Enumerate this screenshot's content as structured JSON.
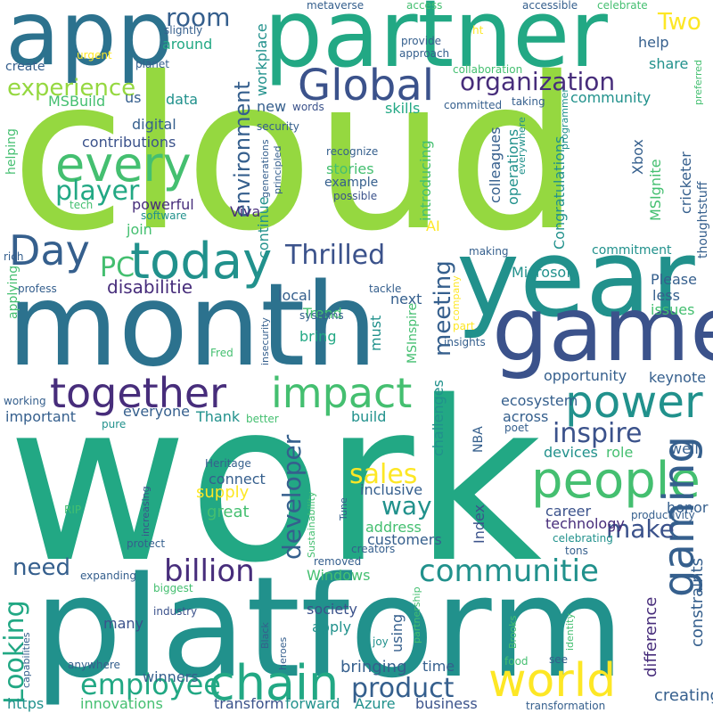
{
  "palette": {
    "green": "#95d840",
    "lime": "#b5de2b",
    "yellow": "#fde725",
    "teal": "#21918c",
    "emerald": "#22a884",
    "mint": "#44bf70",
    "blue": "#2c728e",
    "slate": "#355f8d",
    "indigo": "#3b528b",
    "violet": "#472d7b",
    "purple": "#440154"
  },
  "words": [
    {
      "text": "cloud",
      "color": "green"
    },
    {
      "text": "work",
      "color": "emerald"
    },
    {
      "text": "platform",
      "color": "teal"
    },
    {
      "text": "month",
      "color": "blue"
    },
    {
      "text": "partner",
      "color": "emerald"
    },
    {
      "text": "app",
      "color": "blue"
    },
    {
      "text": "year",
      "color": "teal"
    },
    {
      "text": "game",
      "color": "indigo"
    },
    {
      "text": "today",
      "color": "teal"
    },
    {
      "text": "world",
      "color": "yellow"
    },
    {
      "text": "people",
      "color": "mint"
    },
    {
      "text": "power",
      "color": "teal"
    },
    {
      "text": "impact",
      "color": "mint"
    },
    {
      "text": "together",
      "color": "violet"
    },
    {
      "text": "chain",
      "color": "emerald"
    },
    {
      "text": "every",
      "color": "mint"
    },
    {
      "text": "Global",
      "color": "indigo"
    },
    {
      "text": "Day",
      "color": "slate"
    },
    {
      "text": "gaming",
      "color": "slate"
    },
    {
      "text": "communitie",
      "color": "teal"
    },
    {
      "text": "billion",
      "color": "violet"
    },
    {
      "text": "product",
      "color": "slate"
    },
    {
      "text": "employee",
      "color": "emerald"
    },
    {
      "text": "organization",
      "color": "violet"
    },
    {
      "text": "experience",
      "color": "green"
    },
    {
      "text": "player",
      "color": "emerald"
    },
    {
      "text": "Thrilled",
      "color": "indigo"
    },
    {
      "text": "inspire",
      "color": "indigo"
    },
    {
      "text": "sales",
      "color": "yellow"
    },
    {
      "text": "way",
      "color": "teal"
    },
    {
      "text": "need",
      "color": "slate"
    },
    {
      "text": "developer",
      "color": "slate"
    },
    {
      "text": "environment",
      "color": "slate"
    },
    {
      "text": "meeting",
      "color": "slate"
    },
    {
      "text": "Looking",
      "color": "emerald"
    },
    {
      "text": "make",
      "color": "indigo"
    },
    {
      "text": "room",
      "color": "slate"
    },
    {
      "text": "Two",
      "color": "yellow"
    },
    {
      "text": "PC",
      "color": "mint"
    },
    {
      "text": "disabilitie",
      "color": "violet"
    },
    {
      "text": "bringing",
      "color": "slate"
    },
    {
      "text": "difference",
      "color": "violet"
    },
    {
      "text": "constraints",
      "color": "slate"
    },
    {
      "text": "creating",
      "color": "slate"
    },
    {
      "text": "ecosystem",
      "color": "slate"
    },
    {
      "text": "opportunity",
      "color": "slate"
    },
    {
      "text": "keynote",
      "color": "slate"
    },
    {
      "text": "inclusive",
      "color": "slate"
    },
    {
      "text": "career",
      "color": "indigo"
    },
    {
      "text": "technology",
      "color": "violet"
    },
    {
      "text": "great",
      "color": "mint"
    },
    {
      "text": "supply",
      "color": "yellow"
    },
    {
      "text": "connect",
      "color": "slate"
    },
    {
      "text": "address",
      "color": "mint"
    },
    {
      "text": "customers",
      "color": "slate"
    },
    {
      "text": "society",
      "color": "indigo"
    },
    {
      "text": "apply",
      "color": "teal"
    },
    {
      "text": "Windows",
      "color": "mint"
    },
    {
      "text": "many",
      "color": "indigo"
    },
    {
      "text": "winners",
      "color": "slate"
    },
    {
      "text": "innovations",
      "color": "mint"
    },
    {
      "text": "transform",
      "color": "indigo"
    },
    {
      "text": "forward",
      "color": "teal"
    },
    {
      "text": "Azure",
      "color": "teal"
    },
    {
      "text": "business",
      "color": "indigo"
    },
    {
      "text": "time",
      "color": "slate"
    },
    {
      "text": "using",
      "color": "slate"
    },
    {
      "text": "https",
      "color": "teal"
    },
    {
      "text": "build",
      "color": "teal"
    },
    {
      "text": "across",
      "color": "slate"
    },
    {
      "text": "role",
      "color": "mint"
    },
    {
      "text": "devices",
      "color": "teal"
    },
    {
      "text": "well",
      "color": "slate"
    },
    {
      "text": "honor",
      "color": "slate"
    },
    {
      "text": "Index",
      "color": "indigo"
    },
    {
      "text": "NBA",
      "color": "slate"
    },
    {
      "text": "challenges",
      "color": "teal"
    },
    {
      "text": "must",
      "color": "teal"
    },
    {
      "text": "bring",
      "color": "emerald"
    },
    {
      "text": "Trend",
      "color": "mint"
    },
    {
      "text": "local",
      "color": "slate"
    },
    {
      "text": "next",
      "color": "slate"
    },
    {
      "text": "AI",
      "color": "yellow"
    },
    {
      "text": "join",
      "color": "mint"
    },
    {
      "text": "powerful",
      "color": "violet"
    },
    {
      "text": "Viva",
      "color": "violet"
    },
    {
      "text": "continue",
      "color": "teal"
    },
    {
      "text": "digital",
      "color": "slate"
    },
    {
      "text": "contributions",
      "color": "indigo"
    },
    {
      "text": "data",
      "color": "teal"
    },
    {
      "text": "around",
      "color": "emerald"
    },
    {
      "text": "create",
      "color": "slate"
    },
    {
      "text": "us",
      "color": "slate"
    },
    {
      "text": "new",
      "color": "slate"
    },
    {
      "text": "skills",
      "color": "emerald"
    },
    {
      "text": "workplace",
      "color": "teal"
    },
    {
      "text": "help",
      "color": "slate"
    },
    {
      "text": "share",
      "color": "teal"
    },
    {
      "text": "community",
      "color": "teal"
    },
    {
      "text": "MSBuild",
      "color": "mint"
    },
    {
      "text": "stories",
      "color": "mint"
    },
    {
      "text": "example",
      "color": "slate"
    },
    {
      "text": "introducing",
      "color": "mint"
    },
    {
      "text": "colleagues",
      "color": "slate"
    },
    {
      "text": "operations",
      "color": "teal"
    },
    {
      "text": "Congratulations",
      "color": "teal"
    },
    {
      "text": "Microsoft",
      "color": "teal"
    },
    {
      "text": "commitment",
      "color": "teal"
    },
    {
      "text": "Xbox",
      "color": "slate"
    },
    {
      "text": "MSIgnite",
      "color": "mint"
    },
    {
      "text": "cricketer",
      "color": "slate"
    },
    {
      "text": "thoughtstuff",
      "color": "slate"
    },
    {
      "text": "Please",
      "color": "slate"
    },
    {
      "text": "less",
      "color": "slate"
    },
    {
      "text": "issues",
      "color": "mint"
    },
    {
      "text": "everyone",
      "color": "slate"
    },
    {
      "text": "Thank",
      "color": "teal"
    },
    {
      "text": "important",
      "color": "slate"
    },
    {
      "text": "helping",
      "color": "mint"
    },
    {
      "text": "applying",
      "color": "mint"
    },
    {
      "text": "MSInspire",
      "color": "mint"
    },
    {
      "text": "metaverse",
      "color": "slate"
    },
    {
      "text": "access",
      "color": "mint"
    },
    {
      "text": "accessible",
      "color": "slate"
    },
    {
      "text": "celebrate",
      "color": "mint"
    },
    {
      "text": "slightly",
      "color": "slate"
    },
    {
      "text": "urgent",
      "color": "yellow"
    },
    {
      "text": "planet",
      "color": "slate"
    },
    {
      "text": "provide",
      "color": "slate"
    },
    {
      "text": "approach",
      "color": "slate"
    },
    {
      "text": "collaboration",
      "color": "mint"
    },
    {
      "text": "taking",
      "color": "slate"
    },
    {
      "text": "committed",
      "color": "slate"
    },
    {
      "text": "words",
      "color": "indigo"
    },
    {
      "text": "security",
      "color": "slate"
    },
    {
      "text": "recognize",
      "color": "slate"
    },
    {
      "text": "generations",
      "color": "slate"
    },
    {
      "text": "principled",
      "color": "slate"
    },
    {
      "text": "possible",
      "color": "indigo"
    },
    {
      "text": "tech",
      "color": "mint"
    },
    {
      "text": "software",
      "color": "teal"
    },
    {
      "text": "rich",
      "color": "slate"
    },
    {
      "text": "profess",
      "color": "slate"
    },
    {
      "text": "tackle",
      "color": "slate"
    },
    {
      "text": "systems",
      "color": "slate"
    },
    {
      "text": "Fred",
      "color": "mint"
    },
    {
      "text": "insecurity",
      "color": "slate"
    },
    {
      "text": "making",
      "color": "slate"
    },
    {
      "text": "company",
      "color": "yellow"
    },
    {
      "text": "part",
      "color": "yellow"
    },
    {
      "text": "insights",
      "color": "slate"
    },
    {
      "text": "preferred",
      "color": "mint"
    },
    {
      "text": "programmer",
      "color": "teal"
    },
    {
      "text": "everywhere",
      "color": "teal"
    },
    {
      "text": "ht",
      "color": "yellow"
    },
    {
      "text": "working",
      "color": "slate"
    },
    {
      "text": "pure",
      "color": "teal"
    },
    {
      "text": "better",
      "color": "mint"
    },
    {
      "text": "poet",
      "color": "slate"
    },
    {
      "text": "Heritage",
      "color": "slate"
    },
    {
      "text": "increasing",
      "color": "indigo"
    },
    {
      "text": "RIP",
      "color": "mint"
    },
    {
      "text": "Sustainability",
      "color": "mint"
    },
    {
      "text": "Tune",
      "color": "slate"
    },
    {
      "text": "productivity",
      "color": "slate"
    },
    {
      "text": "celebrating",
      "color": "teal"
    },
    {
      "text": "protect",
      "color": "slate"
    },
    {
      "text": "creators",
      "color": "slate"
    },
    {
      "text": "removed",
      "color": "slate"
    },
    {
      "text": "tons",
      "color": "slate"
    },
    {
      "text": "expanding",
      "color": "slate"
    },
    {
      "text": "biggest",
      "color": "mint"
    },
    {
      "text": "industry",
      "color": "indigo"
    },
    {
      "text": "capabilities",
      "color": "slate"
    },
    {
      "text": "Black",
      "color": "slate"
    },
    {
      "text": "heroes",
      "color": "slate"
    },
    {
      "text": "partnership",
      "color": "mint"
    },
    {
      "text": "Brooks",
      "color": "mint"
    },
    {
      "text": "identity",
      "color": "mint"
    },
    {
      "text": "joy",
      "color": "teal"
    },
    {
      "text": "anywhere",
      "color": "slate"
    },
    {
      "text": "food",
      "color": "mint"
    },
    {
      "text": "see",
      "color": "slate"
    },
    {
      "text": "transformation",
      "color": "slate"
    }
  ]
}
